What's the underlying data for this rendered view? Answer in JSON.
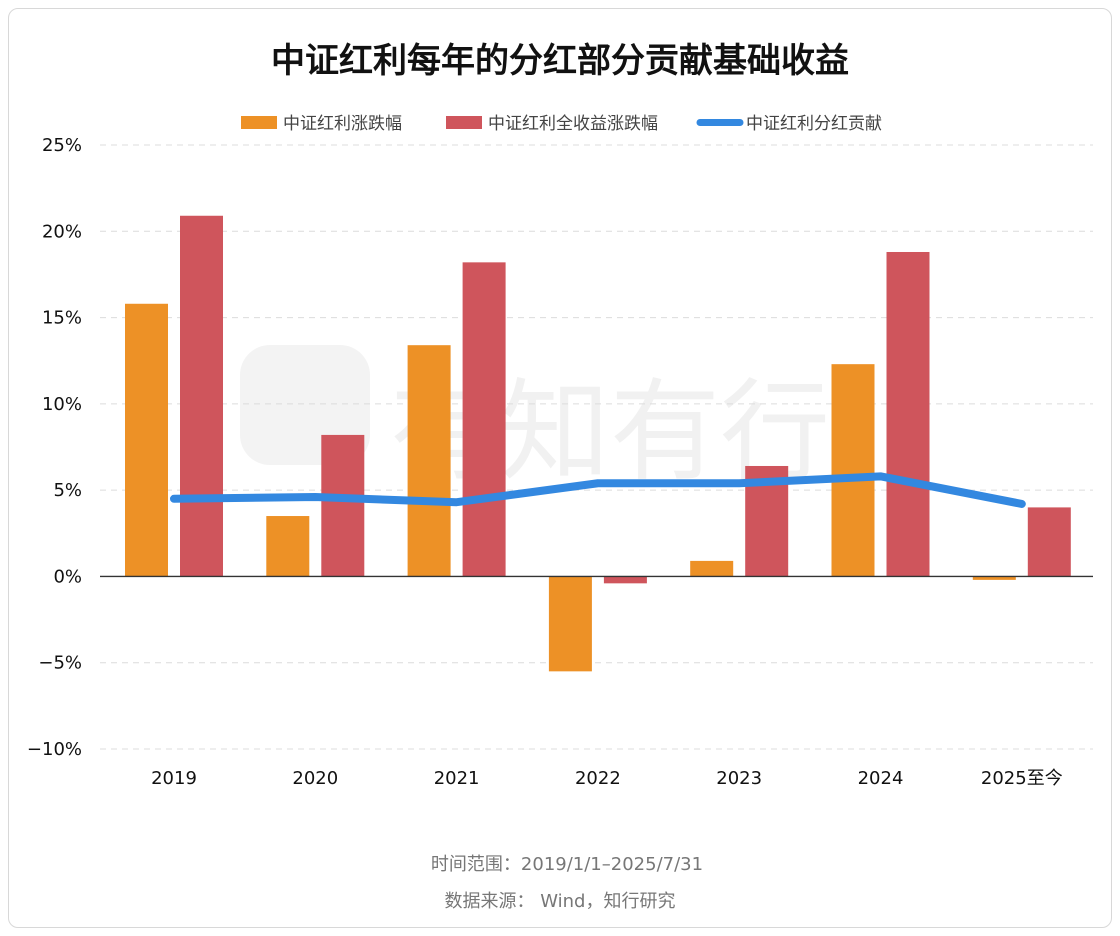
{
  "chart_data": {
    "type": "bar",
    "title": "中证红利每年的分红部分贡献基础收益",
    "categories": [
      "2019",
      "2020",
      "2021",
      "2022",
      "2023",
      "2024",
      "2025至今"
    ],
    "series": [
      {
        "name": "中证红利涨跌幅",
        "kind": "bar",
        "color": "#ED9126",
        "values": [
          15.8,
          3.5,
          13.4,
          -5.5,
          0.9,
          12.3,
          -0.2
        ]
      },
      {
        "name": "中证红利全收益涨跌幅",
        "kind": "bar",
        "color": "#CF555C",
        "values": [
          20.9,
          8.2,
          18.2,
          -0.4,
          6.4,
          18.8,
          4.0
        ]
      },
      {
        "name": "中证红利分红贡献",
        "kind": "line",
        "color": "#3388E0",
        "values": [
          4.5,
          4.6,
          4.3,
          5.4,
          5.4,
          5.8,
          4.2
        ]
      }
    ],
    "yticks": [
      "25%",
      "20%",
      "15%",
      "10%",
      "5%",
      "0%",
      "−5%",
      "−10%"
    ],
    "ytick_values": [
      25,
      20,
      15,
      10,
      5,
      0,
      -5,
      -10
    ],
    "ylim": [
      -10,
      25
    ],
    "grid": true,
    "legend_position": "top-center",
    "watermark": "有知有行"
  },
  "footer": {
    "range": "时间范围：2019/1/1–2025/7/31",
    "source": "数据来源： Wind，知行研究"
  }
}
